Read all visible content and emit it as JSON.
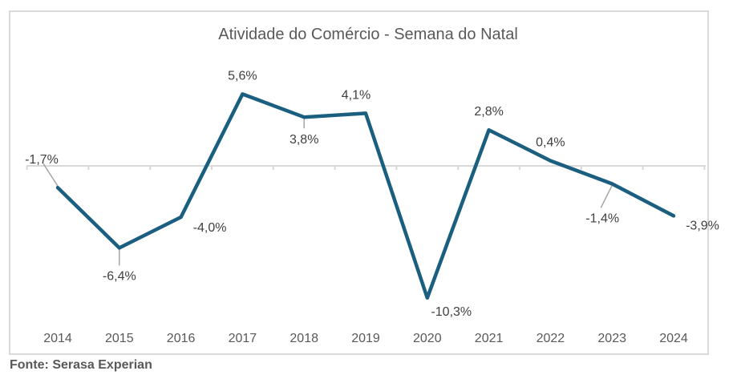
{
  "chart_data": {
    "type": "line",
    "title": "Atividade do Comércio - Semana do Natal",
    "xlabel": "",
    "ylabel": "",
    "categories": [
      "2014",
      "2015",
      "2016",
      "2017",
      "2018",
      "2019",
      "2020",
      "2021",
      "2022",
      "2023",
      "2024"
    ],
    "series": [
      {
        "name": "Atividade do Comércio",
        "values": [
          -1.7,
          -6.4,
          -4.0,
          5.6,
          3.8,
          4.1,
          -10.3,
          2.8,
          0.4,
          -1.4,
          -3.9
        ],
        "labels": [
          "-1,7%",
          "-6,4%",
          "-4,0%",
          "5,6%",
          "3,8%",
          "4,1%",
          "-10,3%",
          "2,8%",
          "0,4%",
          "-1,4%",
          "-3,9%"
        ],
        "color": "#1a5e80"
      }
    ],
    "ylim": [
      -12,
      7
    ],
    "grid": false,
    "legend": "none"
  },
  "source": "Fonte: Serasa Experian",
  "colors": {
    "line": "#1a5e80",
    "axis": "#d9d9d9",
    "leader": "#a6a6a6",
    "text": "#595959"
  }
}
